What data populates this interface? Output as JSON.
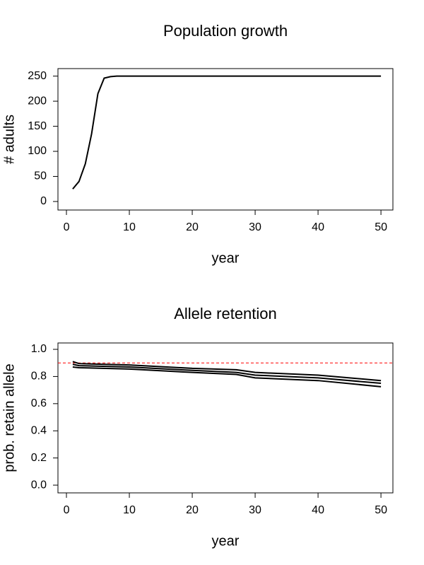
{
  "chart_data": [
    {
      "type": "line",
      "title": "Population growth",
      "xlabel": "year",
      "ylabel": "# adults",
      "x": [
        1,
        2,
        3,
        4,
        5,
        6,
        7,
        8,
        50
      ],
      "series": [
        {
          "color": "#000000",
          "values": [
            25,
            40,
            75,
            135,
            215,
            246,
            249,
            250,
            250
          ]
        }
      ],
      "xlim": [
        -1.35,
        51.9
      ],
      "ylim": [
        -17,
        265
      ],
      "xticks": [
        0,
        10,
        20,
        30,
        40,
        50
      ],
      "yticks": [
        0,
        50,
        100,
        150,
        200,
        250
      ]
    },
    {
      "type": "line",
      "title": "Allele retention",
      "xlabel": "year",
      "ylabel": "prob. retain allele",
      "x": [
        1,
        2,
        10,
        20,
        27,
        30,
        40,
        50
      ],
      "series": [
        {
          "color": "#000000",
          "values": [
            0.89,
            0.88,
            0.87,
            0.845,
            0.83,
            0.81,
            0.79,
            0.75
          ]
        },
        {
          "color": "#000000",
          "values": [
            0.91,
            0.895,
            0.885,
            0.86,
            0.85,
            0.83,
            0.81,
            0.77
          ]
        },
        {
          "color": "#000000",
          "values": [
            0.87,
            0.865,
            0.855,
            0.83,
            0.815,
            0.79,
            0.77,
            0.725
          ]
        }
      ],
      "reference_line": {
        "value": 0.9,
        "color": "#ff0000",
        "style": "dashed"
      },
      "xlim": [
        -1.35,
        51.9
      ],
      "ylim": [
        -0.057,
        1.047
      ],
      "xticks": [
        0,
        10,
        20,
        30,
        40,
        50
      ],
      "yticks": [
        {
          "value": 0,
          "label": "0.0"
        },
        0.2,
        0.4,
        0.6,
        0.8,
        {
          "value": 1,
          "label": "1.0"
        }
      ]
    }
  ]
}
